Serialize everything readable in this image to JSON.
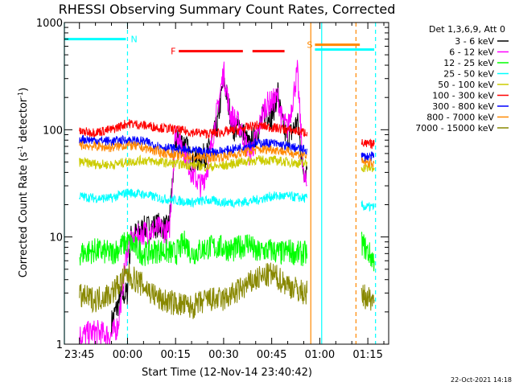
{
  "chart_data": {
    "type": "line",
    "title": "RHESSI Observing Summary Count Rates, Corrected",
    "xlabel": "Start Time (12-Nov-14 23:40:42)",
    "ylabel_main": "Corrected Count Rate (s",
    "ylabel_sup1": "-1",
    "ylabel_mid": " detector",
    "ylabel_sup2": "-1",
    "ylabel_end": ")",
    "y_scale": "log",
    "ylim": [
      1,
      1000
    ],
    "xlim_minutes": [
      -4.7,
      96.5
    ],
    "x_ticks": [
      {
        "minute": 0,
        "label": "23:45"
      },
      {
        "minute": 15,
        "label": "00:00"
      },
      {
        "minute": 30,
        "label": "00:15"
      },
      {
        "minute": 45,
        "label": "00:30"
      },
      {
        "minute": 60,
        "label": "00:45"
      },
      {
        "minute": 75,
        "label": "01:00"
      },
      {
        "minute": 90,
        "label": "01:15"
      }
    ],
    "y_ticks": [
      {
        "value": 1,
        "label": "1"
      },
      {
        "value": 10,
        "label": "10"
      },
      {
        "value": 100,
        "label": "100"
      },
      {
        "value": 1000,
        "label": "1000"
      }
    ],
    "legend_title": "Det 1,3,6,9, Att 0",
    "legend_position": "right",
    "series": [
      {
        "name": "3 - 6 keV",
        "color": "#000000",
        "x": [
          0,
          10,
          13,
          15,
          16,
          20,
          25,
          27,
          28,
          30,
          33,
          35,
          38,
          40,
          43,
          45,
          48,
          50,
          53,
          55,
          58,
          60,
          62,
          63,
          65,
          68,
          70,
          71
        ],
        "y": [
          1.5,
          1.6,
          2.8,
          3,
          10,
          12,
          13,
          12,
          13,
          80,
          75,
          50,
          55,
          60,
          110,
          300,
          100,
          110,
          70,
          90,
          150,
          130,
          230,
          120,
          80,
          120,
          40,
          45
        ]
      },
      {
        "name": "6 - 12 keV",
        "color": "#ff00ff",
        "x": [
          0,
          5,
          10,
          12,
          15,
          18,
          20,
          25,
          28,
          30,
          33,
          35,
          38,
          40,
          43,
          45,
          47,
          50,
          53,
          55,
          58,
          60,
          62,
          63,
          65,
          68,
          70,
          71
        ],
        "y": [
          1.2,
          1.3,
          1.2,
          1.5,
          8,
          10,
          11,
          12,
          11,
          100,
          60,
          40,
          30,
          45,
          150,
          350,
          140,
          110,
          60,
          80,
          170,
          180,
          200,
          130,
          100,
          350,
          35,
          30
        ]
      },
      {
        "name": "12 - 25 keV",
        "color": "#00ff00",
        "x": [
          0,
          5,
          10,
          15,
          20,
          25,
          30,
          33,
          35,
          40,
          45,
          48,
          50,
          53,
          55,
          58,
          60,
          63,
          65,
          68,
          70,
          71,
          88,
          89,
          92
        ],
        "y": [
          7,
          7.5,
          7,
          9,
          7,
          7.5,
          7,
          9,
          7,
          8,
          8,
          7.5,
          8,
          9,
          7,
          7.5,
          7.5,
          7,
          7.5,
          7,
          7,
          7,
          9,
          8,
          6
        ]
      },
      {
        "name": "25 - 50 keV",
        "color": "#00ffff",
        "x": [
          0,
          5,
          10,
          15,
          20,
          25,
          30,
          35,
          40,
          45,
          50,
          55,
          60,
          65,
          70,
          71,
          88,
          89,
          92
        ],
        "y": [
          24,
          23,
          23,
          26,
          25,
          23,
          22,
          21,
          22,
          21,
          21,
          22,
          24,
          24,
          23,
          23,
          20,
          19,
          19
        ]
      },
      {
        "name": "50 - 100 keV",
        "color": "#cccc00",
        "x": [
          0,
          5,
          10,
          15,
          20,
          25,
          30,
          35,
          40,
          45,
          50,
          55,
          60,
          65,
          70,
          71,
          88,
          89,
          92
        ],
        "y": [
          50,
          48,
          47,
          50,
          52,
          50,
          48,
          47,
          45,
          46,
          50,
          52,
          52,
          50,
          48,
          48,
          45,
          44,
          44
        ]
      },
      {
        "name": "100 - 300 keV",
        "color": "#ff0000",
        "x": [
          0,
          5,
          10,
          15,
          20,
          25,
          30,
          35,
          40,
          45,
          50,
          55,
          60,
          65,
          70,
          71,
          88,
          89,
          92
        ],
        "y": [
          95,
          95,
          100,
          115,
          110,
          105,
          100,
          95,
          92,
          95,
          100,
          110,
          105,
          100,
          95,
          95,
          75,
          73,
          73
        ]
      },
      {
        "name": "300 - 800 keV",
        "color": "#0000ff",
        "x": [
          0,
          5,
          10,
          15,
          20,
          25,
          30,
          35,
          40,
          45,
          50,
          55,
          60,
          65,
          70,
          71,
          88,
          89,
          92
        ],
        "y": [
          82,
          80,
          78,
          80,
          78,
          70,
          66,
          63,
          62,
          63,
          68,
          75,
          75,
          70,
          65,
          65,
          57,
          56,
          56
        ]
      },
      {
        "name": "800 - 7000 keV",
        "color": "#ff8800",
        "x": [
          0,
          5,
          10,
          15,
          20,
          25,
          30,
          35,
          40,
          45,
          50,
          55,
          60,
          65,
          70,
          71,
          88,
          89,
          92
        ],
        "y": [
          72,
          70,
          68,
          72,
          68,
          62,
          58,
          56,
          55,
          56,
          60,
          65,
          66,
          62,
          58,
          58,
          50,
          49,
          49
        ]
      },
      {
        "name": "7000 - 15000 keV",
        "color": "#888800",
        "x": [
          0,
          5,
          10,
          15,
          20,
          25,
          30,
          35,
          40,
          45,
          50,
          55,
          60,
          65,
          70,
          71,
          88,
          89,
          92
        ],
        "y": [
          2.8,
          2.6,
          3,
          4.5,
          3.5,
          2.6,
          2.4,
          2.2,
          2.6,
          2.6,
          3.2,
          4,
          4.5,
          3.6,
          3,
          3,
          2.8,
          2.8,
          2.6
        ]
      }
    ],
    "flag_bars": [
      {
        "label": "N",
        "color": "#00ffff",
        "segments": [
          [
            -4.7,
            14.5
          ]
        ],
        "level": 700
      },
      {
        "label": "F",
        "color": "#ff0000",
        "segments": [
          [
            31,
            51
          ],
          [
            54,
            64
          ]
        ],
        "level": 540
      },
      {
        "label": "S",
        "color": "#ff8800",
        "segments": [
          [
            73.5,
            87.5
          ]
        ],
        "level": 620
      },
      {
        "label": "",
        "color": "#00ffff",
        "segments": [
          [
            73.5,
            92
          ]
        ],
        "level": 560
      }
    ],
    "vlines": [
      {
        "minute": -4.7,
        "color": "#00ffff",
        "style": "solid"
      },
      {
        "minute": 15,
        "color": "#00ffff",
        "style": "dashed"
      },
      {
        "minute": 72.2,
        "color": "#ff8800",
        "style": "solid"
      },
      {
        "minute": 75.6,
        "color": "#00ffff",
        "style": "solid"
      },
      {
        "minute": 86.3,
        "color": "#ff8800",
        "style": "dashed"
      },
      {
        "minute": 92.4,
        "color": "#00ffff",
        "style": "dashed"
      }
    ],
    "footer": "22-Oct-2021 14:18"
  }
}
